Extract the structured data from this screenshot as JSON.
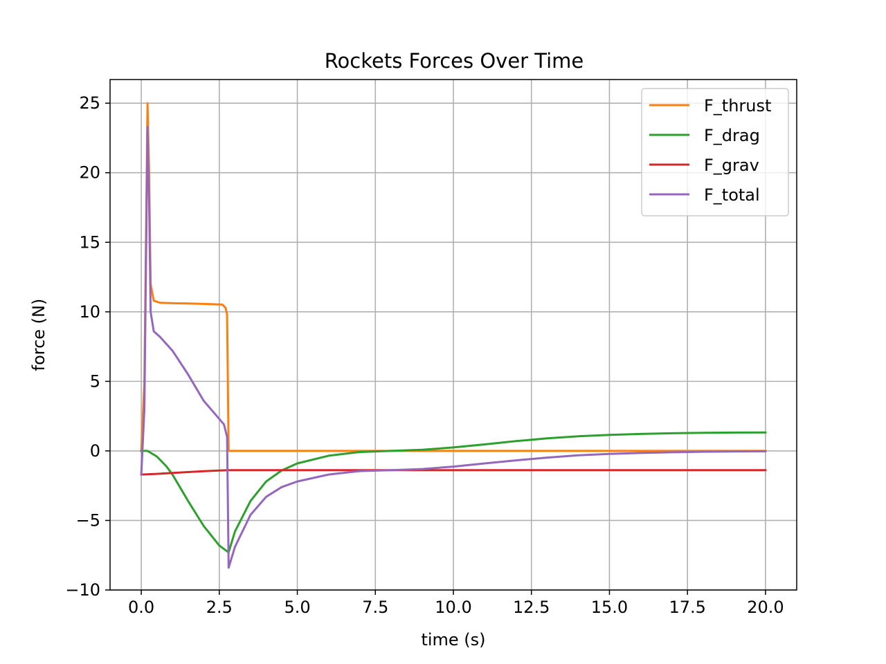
{
  "chart_data": {
    "type": "line",
    "title": "Rockets Forces Over Time",
    "xlabel": "time (s)",
    "ylabel": "force (N)",
    "xlim": [
      -1,
      21
    ],
    "ylim": [
      -10,
      26.7
    ],
    "xticks": [
      0.0,
      2.5,
      5.0,
      7.5,
      10.0,
      12.5,
      15.0,
      17.5,
      20.0
    ],
    "xtick_labels": [
      "0.0",
      "2.5",
      "5.0",
      "7.5",
      "10.0",
      "12.5",
      "15.0",
      "17.5",
      "20.0"
    ],
    "yticks": [
      -10,
      -5,
      0,
      5,
      10,
      15,
      20,
      25
    ],
    "ytick_labels": [
      "−10",
      "−5",
      "0",
      "5",
      "10",
      "15",
      "20",
      "25"
    ],
    "grid": true,
    "legend_position": "top-right",
    "series": [
      {
        "name": "F_thrust",
        "color": "#ff7f0e",
        "points": [
          [
            0,
            0
          ],
          [
            0.1,
            5
          ],
          [
            0.2,
            25.0
          ],
          [
            0.25,
            20
          ],
          [
            0.3,
            12
          ],
          [
            0.4,
            10.8
          ],
          [
            0.6,
            10.65
          ],
          [
            1.0,
            10.62
          ],
          [
            1.5,
            10.6
          ],
          [
            2.0,
            10.57
          ],
          [
            2.6,
            10.52
          ],
          [
            2.7,
            10.3
          ],
          [
            2.75,
            9.8
          ],
          [
            2.8,
            0
          ],
          [
            5,
            0
          ],
          [
            10,
            0
          ],
          [
            15,
            0
          ],
          [
            20,
            0
          ]
        ]
      },
      {
        "name": "F_drag",
        "color": "#2ca02c",
        "points": [
          [
            0,
            0
          ],
          [
            0.2,
            0.0
          ],
          [
            0.5,
            -0.4
          ],
          [
            0.8,
            -1.1
          ],
          [
            1.0,
            -1.7
          ],
          [
            1.5,
            -3.6
          ],
          [
            2.0,
            -5.4
          ],
          [
            2.5,
            -6.8
          ],
          [
            2.8,
            -7.3
          ],
          [
            3.0,
            -5.8
          ],
          [
            3.5,
            -3.6
          ],
          [
            4.0,
            -2.2
          ],
          [
            4.5,
            -1.4
          ],
          [
            5.0,
            -0.9
          ],
          [
            6.0,
            -0.35
          ],
          [
            7.0,
            -0.08
          ],
          [
            8.0,
            0.0
          ],
          [
            9.0,
            0.08
          ],
          [
            10.0,
            0.25
          ],
          [
            11.0,
            0.47
          ],
          [
            12.0,
            0.7
          ],
          [
            13.0,
            0.9
          ],
          [
            14.0,
            1.05
          ],
          [
            15.0,
            1.15
          ],
          [
            16.0,
            1.22
          ],
          [
            17.0,
            1.27
          ],
          [
            18.0,
            1.3
          ],
          [
            19.0,
            1.32
          ],
          [
            20.0,
            1.33
          ]
        ]
      },
      {
        "name": "F_grav",
        "color": "#d62728",
        "points": [
          [
            0,
            -1.7
          ],
          [
            0.5,
            -1.65
          ],
          [
            1.0,
            -1.58
          ],
          [
            1.5,
            -1.52
          ],
          [
            2.0,
            -1.46
          ],
          [
            2.5,
            -1.41
          ],
          [
            2.8,
            -1.38
          ],
          [
            5,
            -1.38
          ],
          [
            10,
            -1.38
          ],
          [
            15,
            -1.38
          ],
          [
            20,
            -1.38
          ]
        ]
      },
      {
        "name": "F_total",
        "color": "#9467bd",
        "points": [
          [
            0,
            -1.7
          ],
          [
            0.1,
            3
          ],
          [
            0.2,
            23.3
          ],
          [
            0.25,
            18
          ],
          [
            0.3,
            10
          ],
          [
            0.4,
            8.6
          ],
          [
            0.6,
            8.2
          ],
          [
            1.0,
            7.2
          ],
          [
            1.5,
            5.5
          ],
          [
            2.0,
            3.6
          ],
          [
            2.5,
            2.3
          ],
          [
            2.65,
            1.9
          ],
          [
            2.75,
            1.0
          ],
          [
            2.8,
            -8.4
          ],
          [
            3.0,
            -6.9
          ],
          [
            3.5,
            -4.6
          ],
          [
            4.0,
            -3.3
          ],
          [
            4.5,
            -2.6
          ],
          [
            5.0,
            -2.2
          ],
          [
            6.0,
            -1.7
          ],
          [
            7.0,
            -1.45
          ],
          [
            8.0,
            -1.38
          ],
          [
            9.0,
            -1.3
          ],
          [
            10.0,
            -1.13
          ],
          [
            11.0,
            -0.9
          ],
          [
            12.0,
            -0.68
          ],
          [
            13.0,
            -0.48
          ],
          [
            14.0,
            -0.32
          ],
          [
            15.0,
            -0.22
          ],
          [
            16.0,
            -0.15
          ],
          [
            17.0,
            -0.1
          ],
          [
            18.0,
            -0.06
          ],
          [
            19.0,
            -0.04
          ],
          [
            20.0,
            -0.03
          ]
        ]
      }
    ]
  }
}
